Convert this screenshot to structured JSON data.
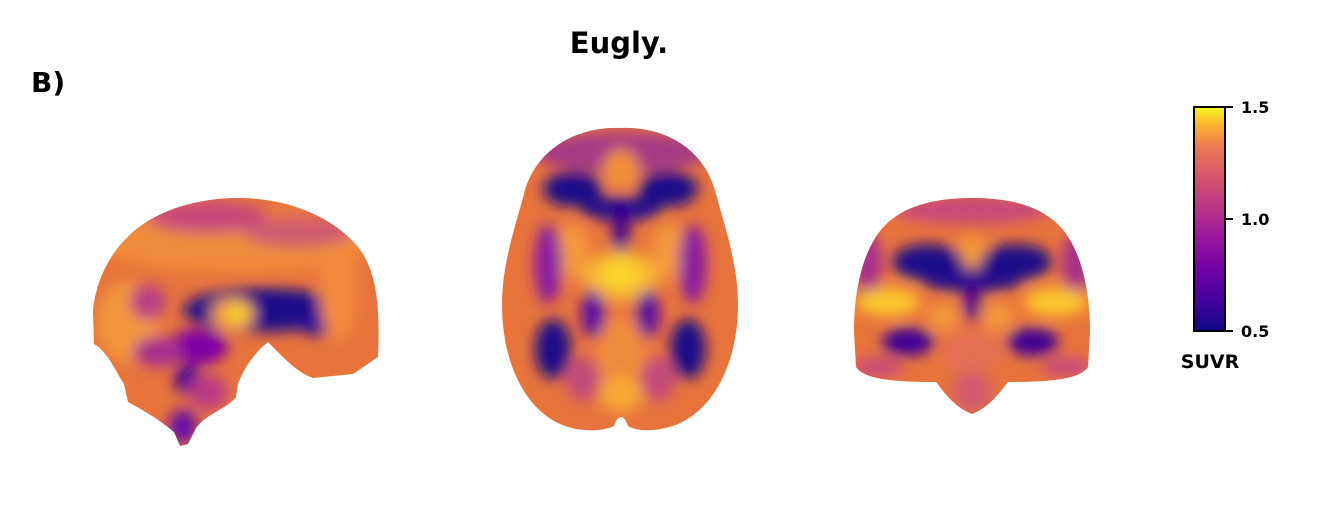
{
  "panel_label": "B)",
  "title": "Eugly.",
  "views": [
    {
      "name": "sagittal"
    },
    {
      "name": "axial"
    },
    {
      "name": "coronal"
    }
  ],
  "colormap": "plasma",
  "colorbar": {
    "label": "SUVR",
    "min": 0.5,
    "max": 1.5,
    "ticks": [
      "1.5",
      "1.0",
      "0.5"
    ],
    "tick_values": [
      1.5,
      1.0,
      0.5
    ]
  }
}
